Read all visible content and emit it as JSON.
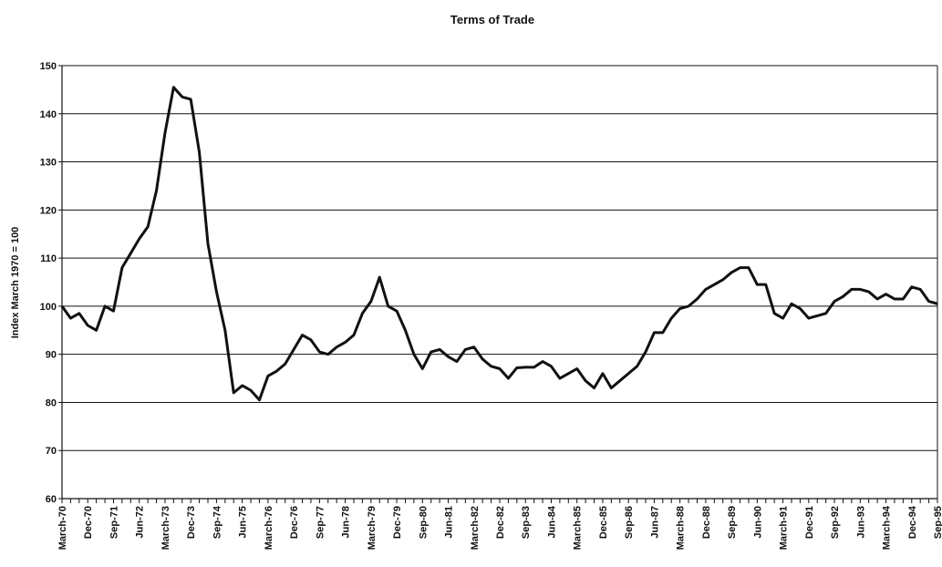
{
  "chart_data": {
    "type": "line",
    "title": "Terms of Trade",
    "y_label": "Index March 1970 = 100",
    "categories": [
      "March-70",
      null,
      null,
      "Dec-70",
      null,
      null,
      "Sep-71",
      null,
      null,
      "Jun-72",
      null,
      null,
      "March-73",
      null,
      null,
      "Dec-73",
      null,
      null,
      "Sep-74",
      null,
      null,
      "Jun-75",
      null,
      null,
      "March-76",
      null,
      null,
      "Dec-76",
      null,
      null,
      "Sep-77",
      null,
      null,
      "Jun-78",
      null,
      null,
      "March-79",
      null,
      null,
      "Dec-79",
      null,
      null,
      "Sep-80",
      null,
      null,
      "Jun-81",
      null,
      null,
      "March-82",
      null,
      null,
      "Dec-82",
      null,
      null,
      "Sep-83",
      null,
      null,
      "Jun-84",
      null,
      null,
      "March-85",
      null,
      null,
      "Dec-85",
      null,
      null,
      "Sep-86",
      null,
      null,
      "Jun-87",
      null,
      null,
      "March-88",
      null,
      null,
      "Dec-88",
      null,
      null,
      "Sep-89",
      null,
      null,
      "Jun-90",
      null,
      null,
      "March-91",
      null,
      null,
      "Dec-91",
      null,
      null,
      "Sep-92",
      null,
      null,
      "Jun-93",
      null,
      null,
      "March-94",
      null,
      null,
      "Dec-94",
      null,
      null,
      "Sep-95"
    ],
    "values": [
      100,
      97.5,
      98.5,
      96,
      95,
      100,
      99,
      108,
      111,
      114,
      116.5,
      124,
      136,
      145.5,
      143.5,
      143,
      132,
      113,
      103,
      95,
      82,
      83.5,
      82.5,
      80.5,
      85.5,
      86.5,
      88,
      91,
      94,
      93,
      90.5,
      90,
      91.5,
      92.5,
      94,
      98.5,
      101,
      106,
      100,
      99,
      95,
      90,
      87,
      90.5,
      91,
      89.5,
      88.5,
      91,
      91.5,
      89,
      87.5,
      87,
      85,
      87.2,
      87.3,
      87.3,
      88.5,
      87.5,
      85,
      86,
      87,
      84.5,
      83,
      86,
      83,
      84.5,
      86,
      87.5,
      90.5,
      94.5,
      94.5,
      97.5,
      99.5,
      100,
      101.5,
      103.5,
      104.5,
      105.5,
      107,
      108,
      108,
      104.5,
      104.5,
      98.5,
      97.5,
      100.5,
      99.5,
      97.5,
      98,
      98.5,
      101,
      102,
      103.5,
      103.5,
      103,
      101.5,
      102.5,
      101.5,
      101.5,
      104,
      103.5,
      101,
      100.5
    ],
    "color": "#111111",
    "ylim": [
      60,
      150
    ],
    "yticks": [
      60,
      70,
      80,
      90,
      100,
      110,
      120,
      130,
      140,
      150
    ],
    "grid": true
  }
}
